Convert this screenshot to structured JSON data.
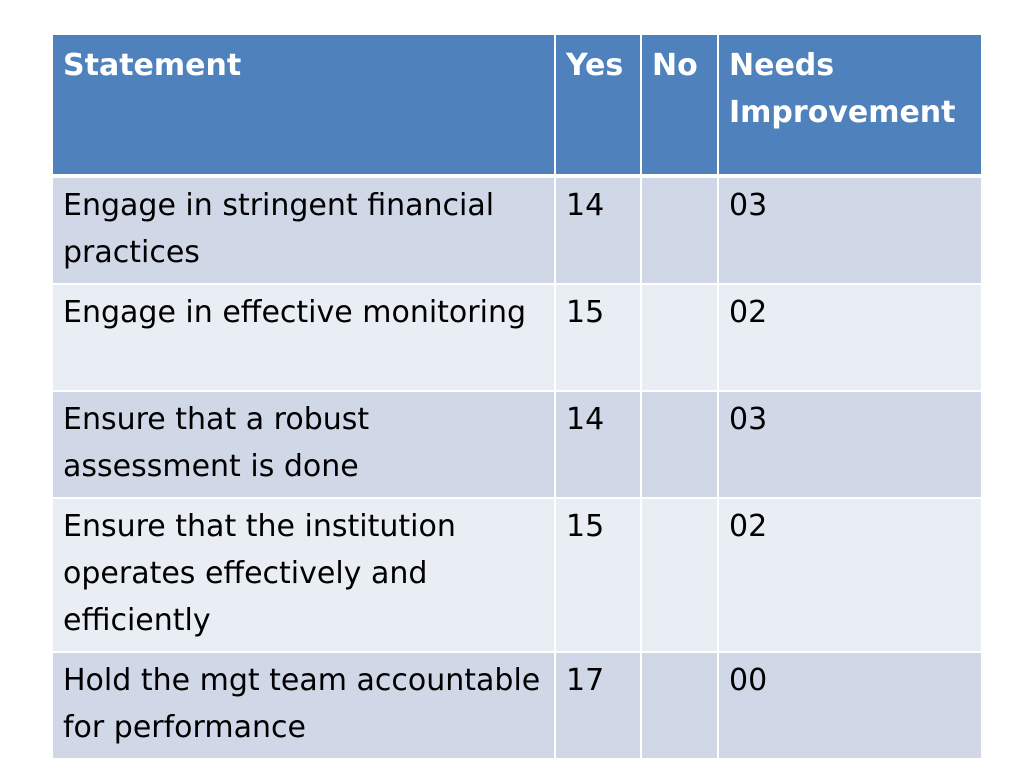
{
  "table": {
    "headers": {
      "statement": "Statement",
      "yes": "Yes",
      "no": "No",
      "needs_improvement_line1": "Needs",
      "needs_improvement_line2": "Improvement"
    },
    "rows": [
      {
        "statement": "Engage in stringent financial practices",
        "yes": "14",
        "no": "",
        "needs_improvement": "03"
      },
      {
        "statement": "Engage in effective monitoring",
        "yes": "15",
        "no": "",
        "needs_improvement": "02"
      },
      {
        "statement": "Ensure that a robust assessment is done",
        "yes": "14",
        "no": "",
        "needs_improvement": "03"
      },
      {
        "statement": "Ensure that the institution operates effectively and efficiently",
        "yes": "15",
        "no": "",
        "needs_improvement": "02"
      },
      {
        "statement": "Hold the mgt team accountable for performance",
        "yes": "17",
        "no": "",
        "needs_improvement": "00"
      }
    ]
  },
  "colors": {
    "header_bg": "#4f81bd",
    "row_odd_bg": "#d0d8e8",
    "row_even_bg": "#e9edf4",
    "header_text": "#ffffff",
    "body_text": "#000000"
  }
}
